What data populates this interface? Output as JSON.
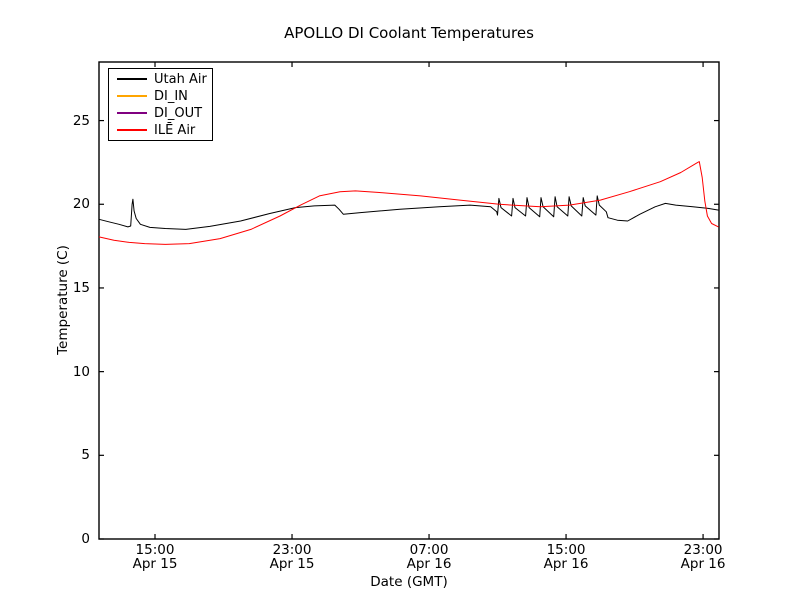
{
  "chart_data": {
    "type": "line",
    "title": "APOLLO DI Coolant Temperatures",
    "xlabel": "Date (GMT)",
    "ylabel": "Temperature (C)",
    "grid": false,
    "legend_position": "upper-left",
    "x_unit_note": "hours since Apr 15 00:00 GMT",
    "xlim": [
      11.73,
      47.93
    ],
    "ylim": [
      0,
      28.5
    ],
    "y_ticks": [
      0,
      5,
      10,
      15,
      20,
      25
    ],
    "x_ticks": [
      {
        "t": 15,
        "time": "15:00",
        "date": "Apr 15"
      },
      {
        "t": 23,
        "time": "23:00",
        "date": "Apr 15"
      },
      {
        "t": 31,
        "time": "07:00",
        "date": "Apr 16"
      },
      {
        "t": 39,
        "time": "15:00",
        "date": "Apr 16"
      },
      {
        "t": 47,
        "time": "23:00",
        "date": "Apr 16"
      }
    ],
    "series": [
      {
        "name": "Utah Air",
        "color": "#000000",
        "points": [
          [
            11.73,
            19.1
          ],
          [
            12.3,
            18.95
          ],
          [
            12.9,
            18.8
          ],
          [
            13.42,
            18.65
          ],
          [
            13.58,
            18.7
          ],
          [
            13.66,
            20.0
          ],
          [
            13.71,
            20.3
          ],
          [
            13.78,
            19.6
          ],
          [
            13.9,
            19.15
          ],
          [
            14.15,
            18.8
          ],
          [
            14.7,
            18.62
          ],
          [
            15.6,
            18.55
          ],
          [
            16.8,
            18.5
          ],
          [
            18.2,
            18.68
          ],
          [
            20.0,
            19.0
          ],
          [
            21.7,
            19.45
          ],
          [
            23.2,
            19.8
          ],
          [
            24.3,
            19.9
          ],
          [
            25.5,
            19.95
          ],
          [
            25.75,
            19.7
          ],
          [
            26.0,
            19.4
          ],
          [
            27.0,
            19.5
          ],
          [
            29.3,
            19.7
          ],
          [
            31.6,
            19.85
          ],
          [
            33.4,
            19.95
          ],
          [
            34.6,
            19.85
          ],
          [
            34.95,
            19.55
          ],
          [
            35.0,
            19.35
          ],
          [
            35.08,
            20.35
          ],
          [
            35.2,
            19.8
          ],
          [
            35.82,
            19.3
          ],
          [
            35.9,
            20.35
          ],
          [
            36.02,
            19.8
          ],
          [
            36.64,
            19.3
          ],
          [
            36.72,
            20.4
          ],
          [
            36.84,
            19.8
          ],
          [
            37.46,
            19.25
          ],
          [
            37.54,
            20.4
          ],
          [
            37.66,
            19.85
          ],
          [
            38.28,
            19.25
          ],
          [
            38.36,
            20.45
          ],
          [
            38.48,
            19.85
          ],
          [
            39.1,
            19.3
          ],
          [
            39.18,
            20.45
          ],
          [
            39.3,
            19.9
          ],
          [
            39.92,
            19.3
          ],
          [
            40.0,
            20.4
          ],
          [
            40.12,
            19.9
          ],
          [
            40.74,
            19.35
          ],
          [
            40.82,
            20.5
          ],
          [
            40.94,
            19.95
          ],
          [
            41.35,
            19.55
          ],
          [
            41.45,
            19.2
          ],
          [
            42.0,
            19.05
          ],
          [
            42.6,
            19.0
          ],
          [
            43.3,
            19.4
          ],
          [
            44.2,
            19.85
          ],
          [
            44.8,
            20.05
          ],
          [
            45.4,
            19.95
          ],
          [
            46.4,
            19.85
          ],
          [
            47.3,
            19.75
          ],
          [
            47.9,
            19.65
          ]
        ]
      },
      {
        "name": "DI_IN",
        "color": "#ffa500",
        "points": []
      },
      {
        "name": "DI_OUT",
        "color": "#800080",
        "points": []
      },
      {
        "name": "ILĒ Air",
        "color": "#ff0000",
        "points": [
          [
            11.73,
            18.05
          ],
          [
            12.6,
            17.85
          ],
          [
            13.5,
            17.72
          ],
          [
            14.4,
            17.65
          ],
          [
            15.6,
            17.6
          ],
          [
            17.0,
            17.65
          ],
          [
            18.8,
            17.95
          ],
          [
            20.6,
            18.5
          ],
          [
            22.3,
            19.3
          ],
          [
            23.5,
            19.95
          ],
          [
            24.6,
            20.5
          ],
          [
            25.8,
            20.75
          ],
          [
            26.7,
            20.8
          ],
          [
            28.1,
            20.7
          ],
          [
            30.5,
            20.5
          ],
          [
            32.8,
            20.25
          ],
          [
            35.1,
            20.0
          ],
          [
            37.5,
            19.85
          ],
          [
            39.2,
            19.95
          ],
          [
            41.0,
            20.25
          ],
          [
            42.7,
            20.75
          ],
          [
            44.5,
            21.35
          ],
          [
            45.7,
            21.9
          ],
          [
            46.6,
            22.45
          ],
          [
            46.78,
            22.55
          ],
          [
            46.95,
            21.6
          ],
          [
            47.1,
            20.2
          ],
          [
            47.25,
            19.3
          ],
          [
            47.5,
            18.85
          ],
          [
            47.9,
            18.65
          ]
        ]
      }
    ]
  }
}
